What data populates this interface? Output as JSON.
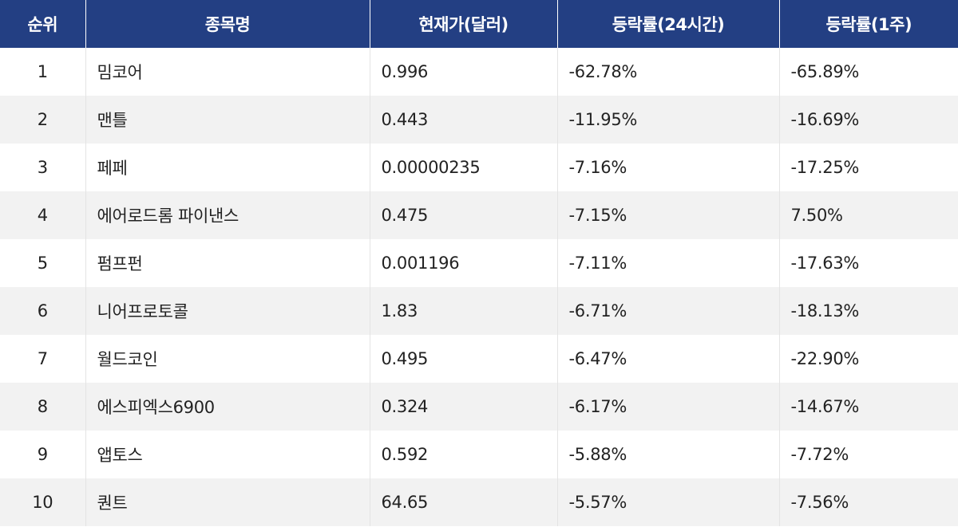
{
  "table": {
    "headers": {
      "rank": "순위",
      "name": "종목명",
      "price": "현재가(달러)",
      "change_24h": "등락률(24시간)",
      "change_1w": "등락률(1주)"
    },
    "rows": [
      {
        "rank": "1",
        "name": "밈코어",
        "price": "0.996",
        "change_24h": "-62.78%",
        "change_1w": "-65.89%"
      },
      {
        "rank": "2",
        "name": "맨틀",
        "price": "0.443",
        "change_24h": "-11.95%",
        "change_1w": "-16.69%"
      },
      {
        "rank": "3",
        "name": "페페",
        "price": "0.00000235",
        "change_24h": "-7.16%",
        "change_1w": "-17.25%"
      },
      {
        "rank": "4",
        "name": "에어로드롬 파이낸스",
        "price": "0.475",
        "change_24h": "-7.15%",
        "change_1w": "7.50%"
      },
      {
        "rank": "5",
        "name": "펌프펀",
        "price": "0.001196",
        "change_24h": "-7.11%",
        "change_1w": "-17.63%"
      },
      {
        "rank": "6",
        "name": "니어프로토콜",
        "price": "1.83",
        "change_24h": "-6.71%",
        "change_1w": "-18.13%"
      },
      {
        "rank": "7",
        "name": "월드코인",
        "price": "0.495",
        "change_24h": "-6.47%",
        "change_1w": "-22.90%"
      },
      {
        "rank": "8",
        "name": "에스피엑스6900",
        "price": "0.324",
        "change_24h": "-6.17%",
        "change_1w": "-14.67%"
      },
      {
        "rank": "9",
        "name": "앱토스",
        "price": "0.592",
        "change_24h": "-5.88%",
        "change_1w": "-7.72%"
      },
      {
        "rank": "10",
        "name": "퀀트",
        "price": "64.65",
        "change_24h": "-5.57%",
        "change_1w": "-7.56%"
      }
    ]
  },
  "colors": {
    "header_bg": "#233f83",
    "header_text": "#ffffff",
    "row_alt_bg": "#f2f2f2"
  }
}
